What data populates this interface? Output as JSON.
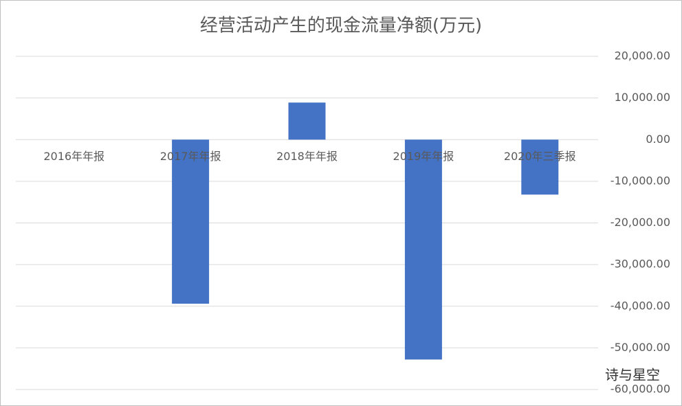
{
  "chart_data": {
    "type": "bar",
    "title": "经营活动产生的现金流量净额(万元)",
    "categories": [
      "2016年年报",
      "2017年年报",
      "2018年年报",
      "2019年年报",
      "2020年三季报"
    ],
    "values": [
      0,
      -39400,
      8900,
      -52800,
      -13200
    ],
    "color": "#4472c4",
    "ylim": [
      -60000,
      20000
    ],
    "yticks": [
      {
        "value": -60000,
        "label": "-60,000.00"
      },
      {
        "value": -50000,
        "label": "-50,000.00"
      },
      {
        "value": -40000,
        "label": "-40,000.00"
      },
      {
        "value": -30000,
        "label": "-30,000.00"
      },
      {
        "value": -20000,
        "label": "-20,000.00"
      },
      {
        "value": -10000,
        "label": "-10,000.00"
      },
      {
        "value": 0,
        "label": "0.00"
      },
      {
        "value": 10000,
        "label": "10,000.00"
      },
      {
        "value": 20000,
        "label": "20,000.00"
      }
    ],
    "grid": true,
    "watermark": "诗与星空"
  }
}
